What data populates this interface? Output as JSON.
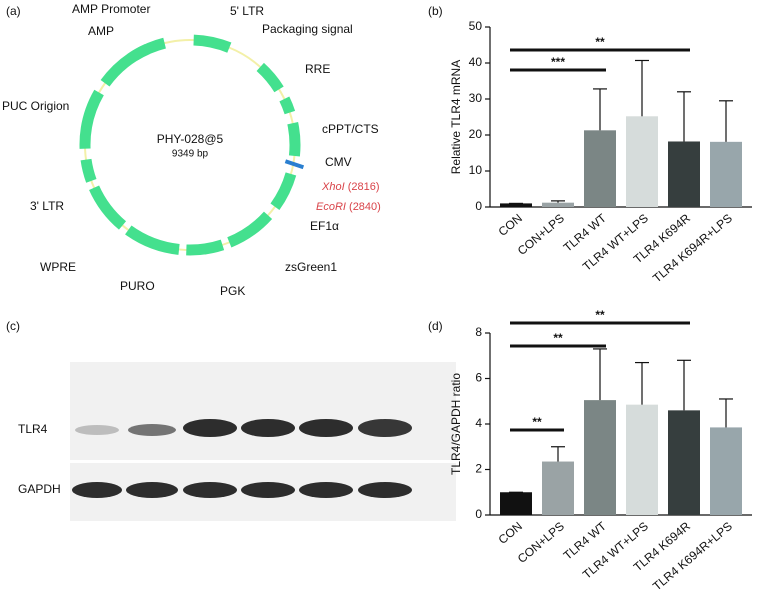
{
  "panel_labels": [
    "(a)",
    "(b)",
    "(c)",
    "(d)"
  ],
  "plasmid": {
    "name": "PHY-028@5",
    "size": "9349 bp",
    "features": [
      "AMP Promoter",
      "5' LTR",
      "Packaging signal",
      "AMP",
      "RRE",
      "PUC Origion",
      "cPPT/CTS",
      "CMV",
      "3' LTR",
      "EF1α",
      "WPRE",
      "zsGreen1",
      "PURO",
      "PGK"
    ],
    "sites": [
      {
        "enzyme": "XhoI",
        "position": "(2816)"
      },
      {
        "enzyme": "EcoRI",
        "position": "(2840)"
      }
    ]
  },
  "blot": {
    "rows": [
      "TLR4",
      "GAPDH"
    ]
  },
  "chart_data": [
    {
      "type": "bar",
      "ylabel": "Relative TLR4 mRNA",
      "categories": [
        "CON",
        "CON+LPS",
        "TLR4 WT",
        "TLR4 WT+LPS",
        "TLR4 K694R",
        "TLR4 K694R+LPS"
      ],
      "values": [
        1,
        1.2,
        21.3,
        25.2,
        18.2,
        18.1
      ],
      "errors": [
        0,
        0.5,
        11.5,
        15.5,
        13.8,
        11.4
      ],
      "colors": [
        "#111111",
        "#9aa3a5",
        "#7b8685",
        "#d6dcdb",
        "#363e3e",
        "#98a6ab"
      ],
      "ylim": [
        0,
        50
      ],
      "yticks": [
        0,
        10,
        20,
        30,
        40,
        50
      ],
      "annotations": [
        {
          "text": "**",
          "from": "CON",
          "to": "TLR4 K694R"
        },
        {
          "text": "***",
          "from": "CON",
          "to": "TLR4 WT"
        }
      ]
    },
    {
      "type": "bar",
      "ylabel": "TLR4/GAPDH ratio",
      "categories": [
        "CON",
        "CON+LPS",
        "TLR4 WT",
        "TLR4 WT+LPS",
        "TLR4 K694R",
        "TLR4 K694R+LPS"
      ],
      "values": [
        1.0,
        2.35,
        5.05,
        4.85,
        4.6,
        3.85
      ],
      "errors": [
        0,
        0.65,
        2.25,
        1.85,
        2.2,
        1.25
      ],
      "colors": [
        "#111111",
        "#9aa3a5",
        "#7b8685",
        "#d6dcdb",
        "#363e3e",
        "#98a6ab"
      ],
      "ylim": [
        0,
        8
      ],
      "yticks": [
        0,
        2,
        4,
        6,
        8
      ],
      "annotations": [
        {
          "text": "**",
          "from": "CON",
          "to": "TLR4 K694R"
        },
        {
          "text": "**",
          "from": "CON",
          "to": "TLR4 WT"
        },
        {
          "text": "**",
          "from": "CON",
          "to": "CON+LPS"
        }
      ]
    }
  ]
}
